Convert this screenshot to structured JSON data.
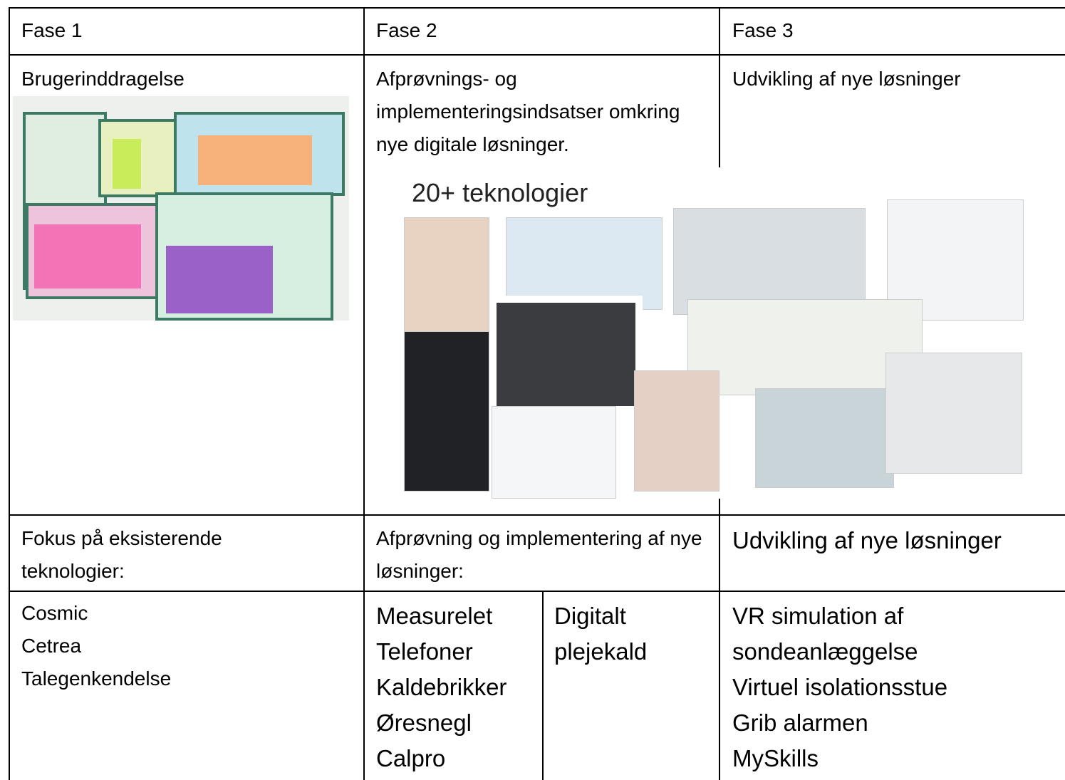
{
  "table": {
    "headers": [
      "Fase 1",
      "Fase 2",
      "Fase 3"
    ],
    "phase_titles": [
      "Brugerinddragelse",
      "Afprøvnings- og implementeringsindsatser omkring nye digitale løsninger.",
      "Udvikling af nye løsninger"
    ],
    "image_caption": "20+ teknologier",
    "focus": [
      "Fokus på eksisterende teknologier:",
      "Afprøvning og implementering af nye løsninger:",
      "Udvikling af nye løsninger"
    ],
    "items": {
      "fase1": [
        "Cosmic",
        "Cetrea",
        "Talegenkendelse"
      ],
      "fase2a": [
        "Measurelet",
        "Telefoner",
        "Kaldebrikker",
        "Øresnegl",
        "Calpro"
      ],
      "fase2b": [
        "Digitalt plejekald"
      ],
      "fase3": [
        "VR simulation af sondeanlæggelse",
        "Virtuel isolationsstue",
        "Grib alarmen",
        "MySkills"
      ]
    }
  }
}
